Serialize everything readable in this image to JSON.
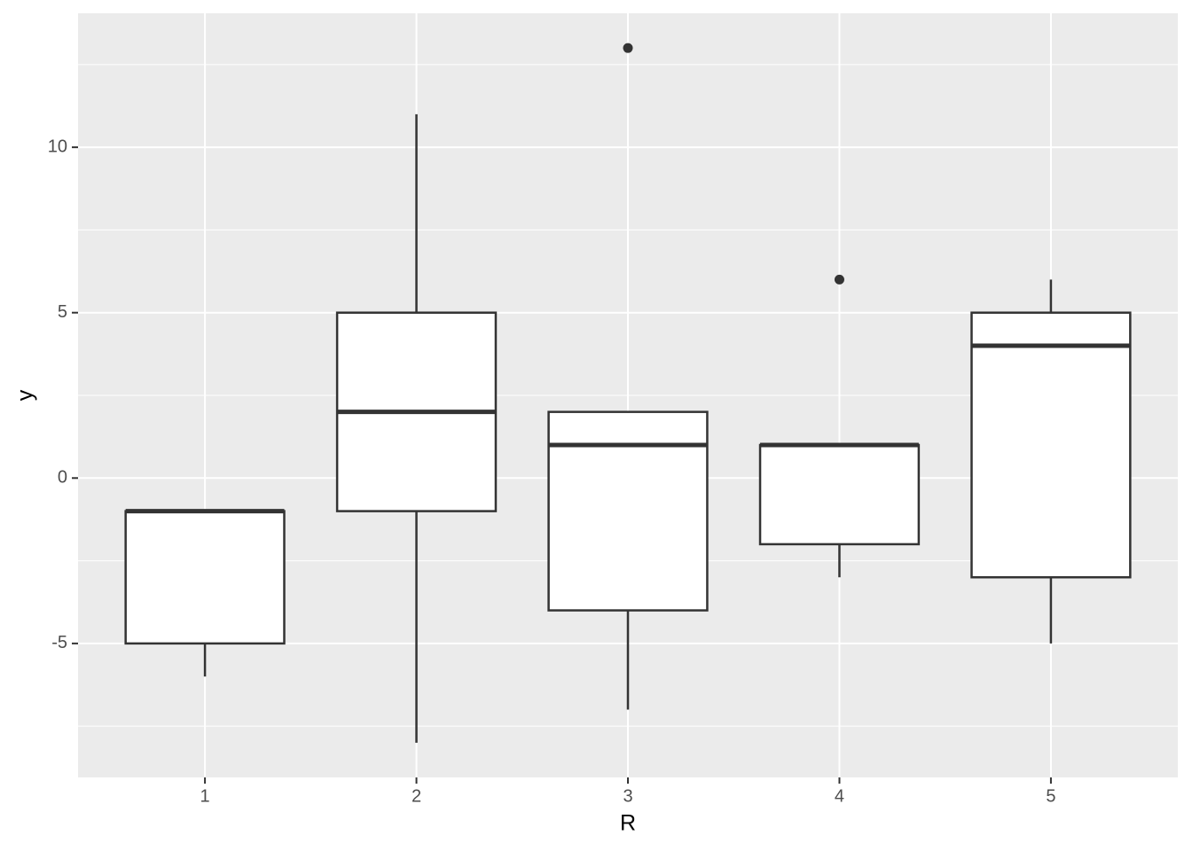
{
  "chart_data": {
    "type": "box",
    "x_label": "R",
    "y_label": "y",
    "categories": [
      "1",
      "2",
      "3",
      "4",
      "5"
    ],
    "boxes": [
      {
        "min": -6,
        "q1": -5,
        "median": -1,
        "q3": -1,
        "max": -1
      },
      {
        "min": -8,
        "q1": -1,
        "median": 2,
        "q3": 5,
        "max": 11
      },
      {
        "min": -7,
        "q1": -4,
        "median": 1,
        "q3": 2,
        "max": 2,
        "outliers": [
          13
        ]
      },
      {
        "min": -3,
        "q1": -2,
        "median": 1,
        "q3": 1,
        "max": 1,
        "outliers": [
          6
        ]
      },
      {
        "min": -5,
        "q1": -3,
        "median": 4,
        "q3": 5,
        "max": 6
      }
    ],
    "ylim": [
      -9.05,
      14.05
    ],
    "yticks": [
      -5,
      0,
      5,
      10
    ],
    "yminor": [
      -7.5,
      -2.5,
      2.5,
      7.5,
      12.5
    ],
    "grid": true,
    "color": "#333333",
    "fill": "#ffffff",
    "panel_color": "#ebebeb"
  }
}
